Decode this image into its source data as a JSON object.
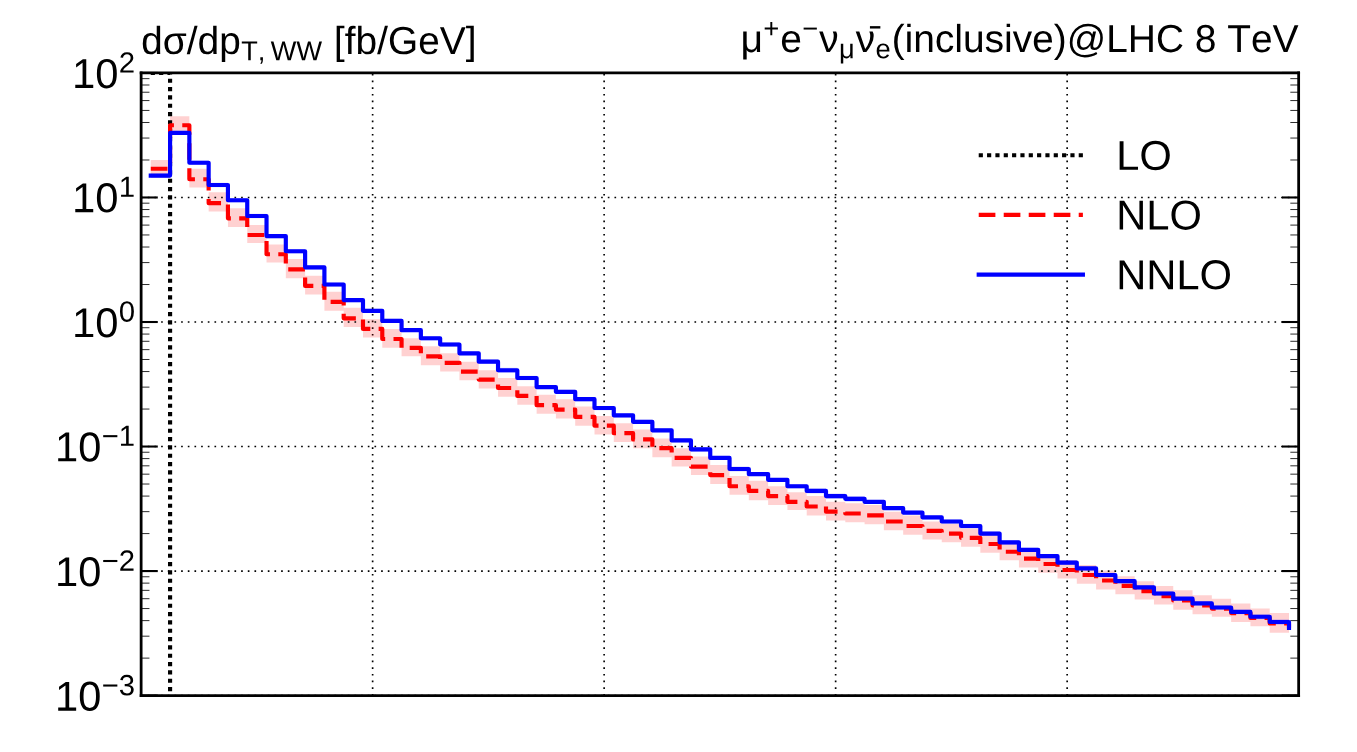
{
  "chart_data": {
    "type": "step",
    "title": "dσ/dp$_{T,WW}$ [fb/GeV]",
    "subtitle": "μ$^{+}$e$^{−}$ν$_{μ}$ν̄$_{e}$(inclusive)@LHC 8 TeV",
    "categories": [
      null,
      null,
      null,
      null,
      null,
      null,
      null,
      null,
      null,
      null,
      null,
      null,
      null,
      null,
      null,
      null,
      null,
      null,
      null,
      null,
      null,
      null,
      null,
      null,
      null,
      null,
      null,
      null,
      null,
      null,
      null,
      null,
      null,
      null,
      null,
      null,
      null,
      null,
      null,
      null,
      null,
      null,
      null,
      null,
      null,
      null,
      null,
      null,
      null,
      null,
      null,
      null,
      null,
      null,
      null,
      null,
      null,
      null,
      null,
      null
    ],
    "log": "y",
    "ylim": [
      0.001,
      100
    ],
    "yticks": [
      {
        "value": 0.001,
        "label": "10$^{−3}$"
      },
      {
        "value": 0.01,
        "label": "10$^{−2}$"
      },
      {
        "value": 0.1,
        "label": "10$^{−1}$"
      },
      {
        "value": 1,
        "label": "10$^{0}$"
      },
      {
        "value": 10,
        "label": "10$^{1}$"
      },
      {
        "value": 100,
        "label": "10$^{2}$"
      }
    ],
    "tick_labels": "y",
    "grid": true,
    "legend": "top right",
    "series": [
      {
        "name": "LO",
        "color": "#000000",
        "line_style": "dotted",
        "values": [
          100,
          0.001,
          null,
          null,
          null,
          null,
          null,
          null,
          null,
          null,
          null,
          null,
          null,
          null,
          null,
          null,
          null,
          null,
          null,
          null,
          null,
          null,
          null,
          null,
          null,
          null,
          null,
          null,
          null,
          null,
          null,
          null,
          null,
          null,
          null,
          null,
          null,
          null,
          null,
          null,
          null,
          null,
          null,
          null,
          null,
          null,
          null,
          null,
          null,
          null,
          null,
          null,
          null,
          null,
          null,
          null,
          null,
          null,
          null,
          null
        ]
      },
      {
        "name": "NLO",
        "color": "#ff0000",
        "line_style": "dashed",
        "values": [
          17,
          38,
          14,
          9,
          6.8,
          5.0,
          3.5,
          2.65,
          1.95,
          1.45,
          1.07,
          0.88,
          0.73,
          0.62,
          0.53,
          0.47,
          0.4,
          0.345,
          0.295,
          0.255,
          0.215,
          0.198,
          0.173,
          0.147,
          0.128,
          0.114,
          0.097,
          0.081,
          0.069,
          0.059,
          0.048,
          0.044,
          0.04,
          0.036,
          0.033,
          0.03,
          0.029,
          0.028,
          0.025,
          0.023,
          0.021,
          0.02,
          0.0185,
          0.0165,
          0.0143,
          0.0126,
          0.0114,
          0.0102,
          0.0093,
          0.0084,
          0.0076,
          0.0069,
          0.0063,
          0.0058,
          0.0053,
          0.005,
          0.0046,
          0.0042,
          0.0038,
          0.0035
        ],
        "upper": [
          20,
          45,
          17,
          11,
          8.2,
          6.0,
          4.2,
          3.2,
          2.35,
          1.75,
          1.3,
          1.05,
          0.88,
          0.74,
          0.64,
          0.56,
          0.48,
          0.41,
          0.355,
          0.305,
          0.26,
          0.24,
          0.21,
          0.176,
          0.154,
          0.137,
          0.116,
          0.097,
          0.083,
          0.071,
          0.058,
          0.053,
          0.048,
          0.043,
          0.04,
          0.036,
          0.035,
          0.034,
          0.03,
          0.028,
          0.025,
          0.024,
          0.022,
          0.02,
          0.0172,
          0.0151,
          0.0137,
          0.0122,
          0.0112,
          0.0101,
          0.0091,
          0.0083,
          0.0076,
          0.007,
          0.0064,
          0.006,
          0.0055,
          0.005,
          0.0046,
          0.0042
        ],
        "lower": [
          14.5,
          32,
          12,
          7.7,
          5.8,
          4.3,
          3.0,
          2.25,
          1.66,
          1.23,
          0.91,
          0.75,
          0.62,
          0.53,
          0.45,
          0.4,
          0.34,
          0.293,
          0.251,
          0.217,
          0.183,
          0.168,
          0.147,
          0.125,
          0.109,
          0.097,
          0.082,
          0.069,
          0.059,
          0.05,
          0.041,
          0.037,
          0.034,
          0.031,
          0.028,
          0.0255,
          0.0247,
          0.0238,
          0.0213,
          0.0196,
          0.0179,
          0.017,
          0.0157,
          0.014,
          0.0122,
          0.0107,
          0.0097,
          0.0087,
          0.0079,
          0.0071,
          0.0065,
          0.0059,
          0.0054,
          0.0049,
          0.0045,
          0.0043,
          0.0039,
          0.0036,
          0.0032,
          0.003
        ]
      },
      {
        "name": "NNLO",
        "color": "#0000ff",
        "line_style": "solid",
        "values": [
          15,
          33,
          19,
          12.6,
          9.5,
          7.1,
          4.9,
          3.7,
          2.75,
          2.0,
          1.5,
          1.23,
          1.02,
          0.86,
          0.74,
          0.66,
          0.56,
          0.48,
          0.41,
          0.355,
          0.3,
          0.275,
          0.24,
          0.204,
          0.178,
          0.158,
          0.135,
          0.112,
          0.095,
          0.081,
          0.066,
          0.06,
          0.054,
          0.048,
          0.044,
          0.04,
          0.038,
          0.036,
          0.032,
          0.0295,
          0.027,
          0.025,
          0.023,
          0.02,
          0.017,
          0.0148,
          0.0132,
          0.0117,
          0.0105,
          0.0093,
          0.0083,
          0.0074,
          0.0066,
          0.006,
          0.0055,
          0.0051,
          0.0047,
          0.0043,
          0.0039,
          0.0035
        ],
        "upper": [
          15.6,
          34,
          19.8,
          13.1,
          9.9,
          7.4,
          5.1,
          3.85,
          2.86,
          2.08,
          1.56,
          1.28,
          1.06,
          0.89,
          0.77,
          0.69,
          0.58,
          0.5,
          0.43,
          0.37,
          0.31,
          0.286,
          0.25,
          0.212,
          0.185,
          0.164,
          0.14,
          0.116,
          0.099,
          0.084,
          0.069,
          0.062,
          0.056,
          0.05,
          0.046,
          0.042,
          0.04,
          0.037,
          0.033,
          0.0307,
          0.028,
          0.026,
          0.024,
          0.0208,
          0.0177,
          0.0154,
          0.0137,
          0.0122,
          0.0109,
          0.0097,
          0.0086,
          0.0077,
          0.0069,
          0.0062,
          0.0057,
          0.0053,
          0.0049,
          0.0045,
          0.0041,
          0.0036
        ],
        "lower": [
          14.4,
          31.7,
          18.2,
          12.1,
          9.1,
          6.8,
          4.7,
          3.55,
          2.64,
          1.92,
          1.44,
          1.18,
          0.98,
          0.83,
          0.71,
          0.63,
          0.54,
          0.46,
          0.39,
          0.34,
          0.29,
          0.264,
          0.23,
          0.196,
          0.171,
          0.152,
          0.13,
          0.108,
          0.091,
          0.078,
          0.063,
          0.058,
          0.052,
          0.046,
          0.042,
          0.038,
          0.036,
          0.035,
          0.031,
          0.0283,
          0.026,
          0.024,
          0.022,
          0.0192,
          0.0163,
          0.0142,
          0.0127,
          0.0112,
          0.0101,
          0.0089,
          0.008,
          0.0071,
          0.0063,
          0.0058,
          0.0053,
          0.0049,
          0.0045,
          0.0041,
          0.0037,
          0.0034
        ]
      }
    ]
  }
}
